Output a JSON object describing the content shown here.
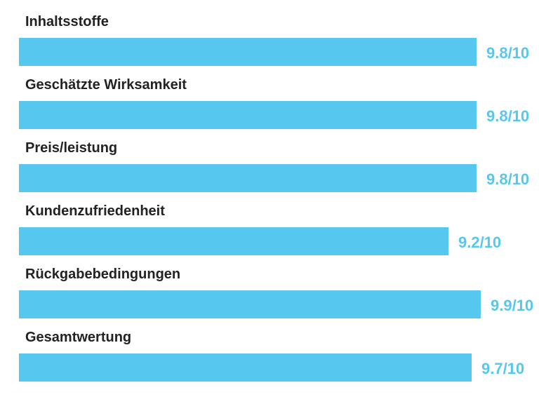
{
  "chart_data": {
    "type": "bar",
    "orientation": "horizontal",
    "categories": [
      "Inhaltsstoffe",
      "Geschätzte Wirksamkeit",
      "Preis/leistung",
      "Kundenzufriedenheit",
      "Rückgabebedingungen",
      "Gesamtwertung"
    ],
    "values": [
      9.8,
      9.8,
      9.8,
      9.2,
      9.9,
      9.7
    ],
    "value_labels": [
      "9.8/10",
      "9.8/10",
      "9.8/10",
      "9.2/10",
      "9.9/10",
      "9.7/10"
    ],
    "xlim": [
      0,
      10
    ],
    "bar_color": "#56C8F0",
    "value_label_color": "#56C8F0",
    "label_color": "#222222",
    "grid": false,
    "legend": "none"
  }
}
